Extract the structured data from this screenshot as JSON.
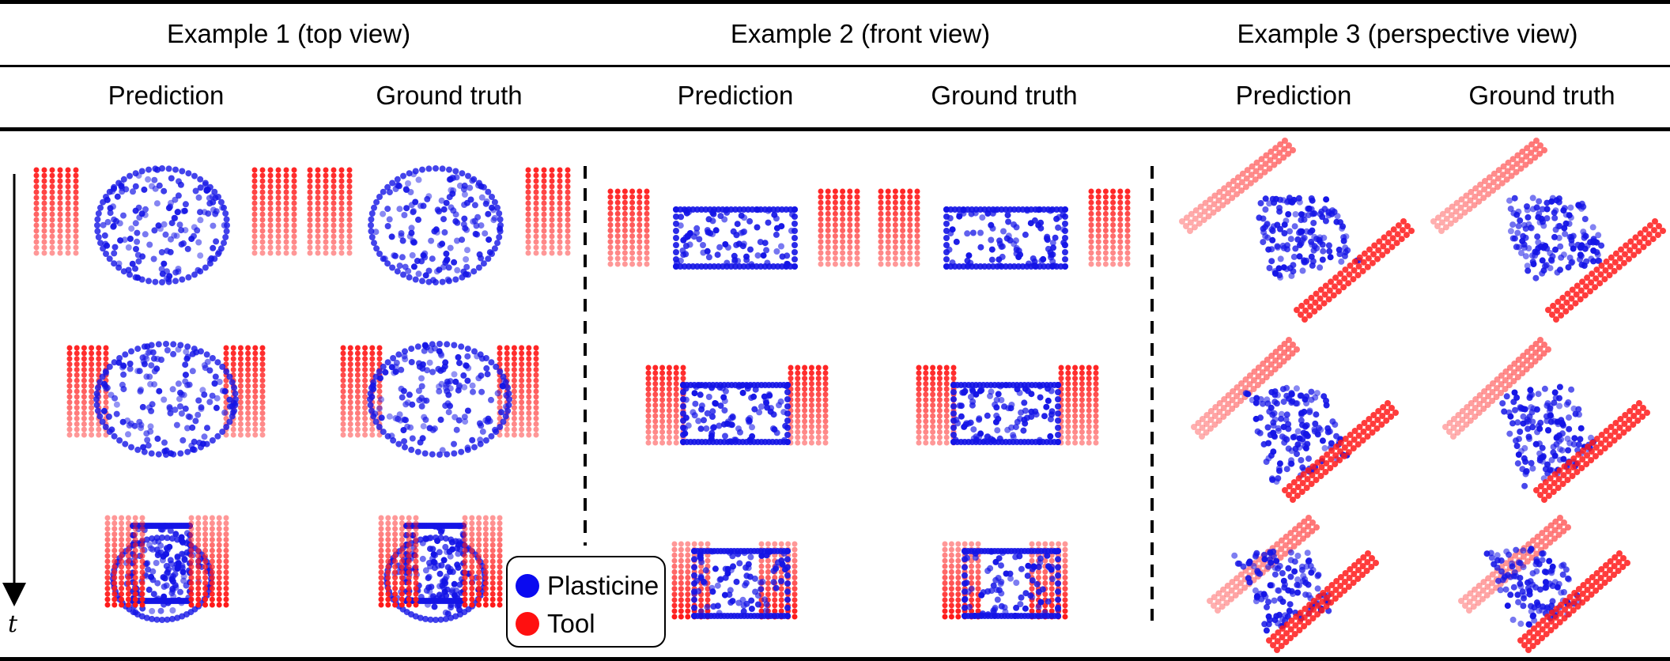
{
  "headers": {
    "examples": [
      "Example 1 (top view)",
      "Example 2 (front view)",
      "Example 3 (perspective view)"
    ],
    "columns": [
      "Prediction",
      "Ground truth",
      "Prediction",
      "Ground truth",
      "Prediction",
      "Ground truth"
    ]
  },
  "time_axis_label": "t",
  "legend": {
    "items": [
      {
        "label": "Plasticine",
        "color": "#0a0af0"
      },
      {
        "label": "Tool",
        "color": "#ff1010"
      }
    ]
  },
  "colors": {
    "plasticine": "#1414e6",
    "tool": "#ff1a1a"
  }
}
